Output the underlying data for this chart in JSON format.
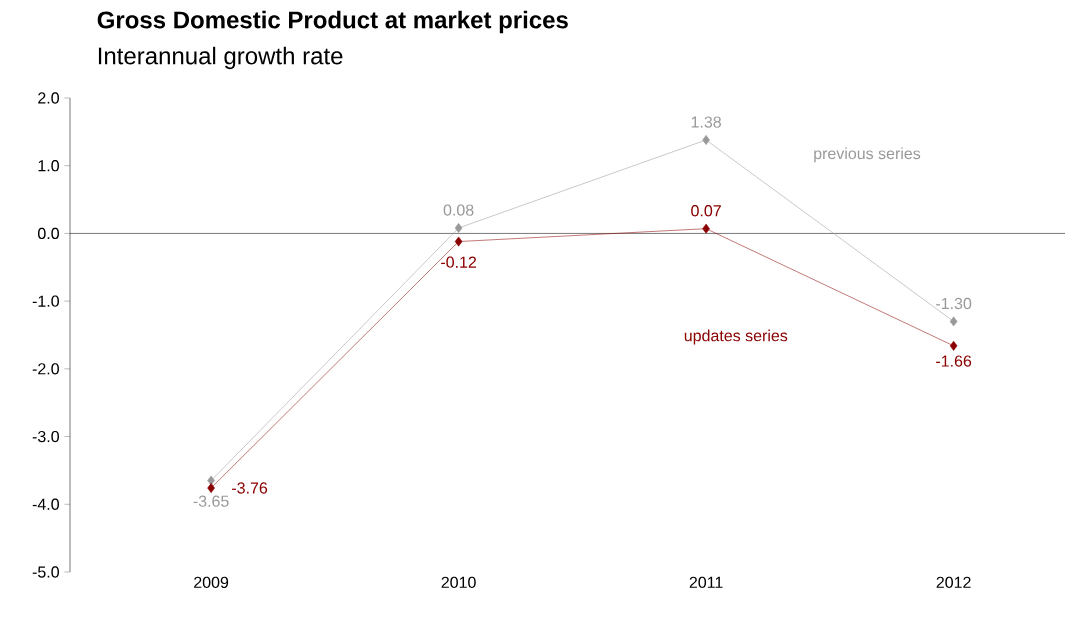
{
  "chart_data": {
    "type": "line",
    "title": "Gross Domestic Product at market prices",
    "subtitle": "Interannual growth rate",
    "categories": [
      "2009",
      "2010",
      "2011",
      "2012"
    ],
    "series": [
      {
        "name": "previous series",
        "color": "#999999",
        "values": [
          -3.65,
          0.08,
          1.38,
          -1.3
        ],
        "value_labels": [
          "-3.65",
          "0.08",
          "1.38",
          "-1.30"
        ]
      },
      {
        "name": "updates series",
        "color": "#8b0000",
        "values": [
          -3.76,
          -0.12,
          0.07,
          -1.66
        ],
        "value_labels": [
          "-3.76",
          "-0.12",
          "0.07",
          "-1.66"
        ]
      }
    ],
    "ylim": [
      -5,
      2
    ],
    "yticks": [
      {
        "value": 2,
        "label": "2.0"
      },
      {
        "value": 1,
        "label": "1.0"
      },
      {
        "value": 0,
        "label": "0.0"
      },
      {
        "value": -1,
        "label": "-1.0"
      },
      {
        "value": -2,
        "label": "-2.0"
      },
      {
        "value": -3,
        "label": "-3.0"
      },
      {
        "value": -4,
        "label": "-4.0"
      },
      {
        "value": -5,
        "label": "-5.0"
      }
    ],
    "marker": "diamond",
    "line_style": "solid"
  }
}
